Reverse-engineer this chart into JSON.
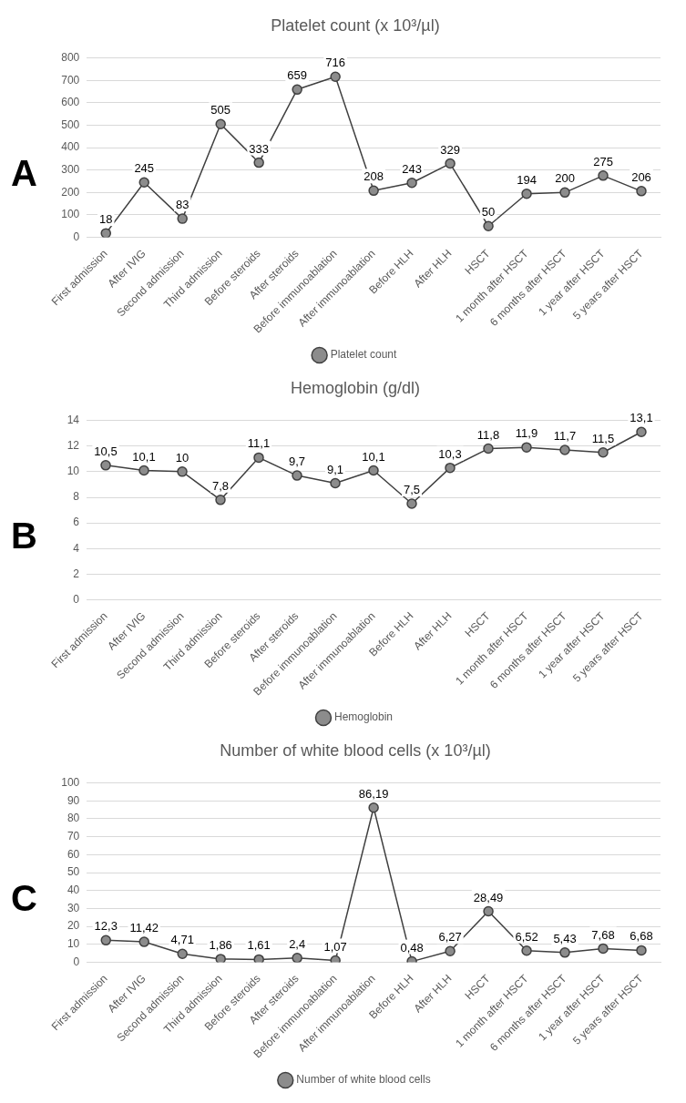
{
  "chart_data": [
    {
      "type": "line",
      "title": "Platelet count (x 10³/µl)",
      "annotations": [
        "A"
      ],
      "categories": [
        "First admission",
        "After IVIG",
        "Second admission",
        "Third admission",
        "Before steroids",
        "After steroids",
        "Before immunoablation",
        "After immunoablation",
        "Before HLH",
        "After HLH",
        "HSCT",
        "1 month after HSCT",
        "6 months after HSCT",
        "1 year after HSCT",
        "5 years after HSCT"
      ],
      "series": [
        {
          "name": "Platelet count",
          "color": "#404040",
          "values": [
            18,
            245,
            83,
            505,
            333,
            659,
            716,
            208,
            243,
            329,
            50,
            194,
            200,
            275,
            206
          ],
          "value_labels": [
            "18",
            "245",
            "83",
            "505",
            "333",
            "659",
            "716",
            "208",
            "243",
            "329",
            "50",
            "194",
            "200",
            "275",
            "206"
          ]
        }
      ],
      "ylim": [
        0,
        800
      ],
      "yticks": [
        0,
        100,
        200,
        300,
        400,
        500,
        600,
        700,
        800
      ],
      "grid": "y",
      "legend": "bottom",
      "marker": "circle",
      "line_style": "solid"
    },
    {
      "type": "line",
      "title": "Hemoglobin (g/dl)",
      "annotations": [
        "B"
      ],
      "categories": [
        "First admission",
        "After IVIG",
        "Second admission",
        "Third admission",
        "Before steroids",
        "After steroids",
        "Before immunoablation",
        "After immunoablation",
        "Before HLH",
        "After HLH",
        "HSCT",
        "1 month after HSCT",
        "6 months after HSCT",
        "1 year after HSCT",
        "5 years after HSCT"
      ],
      "series": [
        {
          "name": "Hemoglobin",
          "color": "#404040",
          "values": [
            10.5,
            10.1,
            10,
            7.8,
            11.1,
            9.7,
            9.1,
            10.1,
            7.5,
            10.3,
            11.8,
            11.9,
            11.7,
            11.5,
            13.1
          ],
          "value_labels": [
            "10,5",
            "10,1",
            "10",
            "7,8",
            "11,1",
            "9,7",
            "9,1",
            "10,1",
            "7,5",
            "10,3",
            "11,8",
            "11,9",
            "11,7",
            "11,5",
            "13,1"
          ]
        }
      ],
      "ylim": [
        0,
        14
      ],
      "yticks": [
        0,
        2,
        4,
        6,
        8,
        10,
        12,
        14
      ],
      "grid": "y",
      "legend": "bottom",
      "marker": "circle",
      "line_style": "solid"
    },
    {
      "type": "line",
      "title": "Number of white blood cells (x 10³/µl)",
      "annotations": [
        "C"
      ],
      "categories": [
        "First admission",
        "After IVIG",
        "Second admission",
        "Third admission",
        "Before steroids",
        "After steroids",
        "Before immunoablation",
        "After immunoablation",
        "Before HLH",
        "After HLH",
        "HSCT",
        "1 month after HSCT",
        "6 months after HSCT",
        "1 year after HSCT",
        "5 years after HSCT"
      ],
      "series": [
        {
          "name": "Number of white blood cells",
          "color": "#404040",
          "values": [
            12.3,
            11.42,
            4.71,
            1.86,
            1.61,
            2.4,
            1.07,
            86.19,
            0.48,
            6.27,
            28.49,
            6.52,
            5.43,
            7.68,
            6.68
          ],
          "value_labels": [
            "12,3",
            "11,42",
            "4,71",
            "1,86",
            "1,61",
            "2,4",
            "1,07",
            "86,19",
            "0,48",
            "6,27",
            "28,49",
            "6,52",
            "5,43",
            "7,68",
            "6,68"
          ]
        }
      ],
      "ylim": [
        0,
        100
      ],
      "yticks": [
        0,
        10,
        20,
        30,
        40,
        50,
        60,
        70,
        80,
        90,
        100
      ],
      "grid": "y",
      "legend": "bottom",
      "marker": "circle",
      "line_style": "solid"
    }
  ]
}
